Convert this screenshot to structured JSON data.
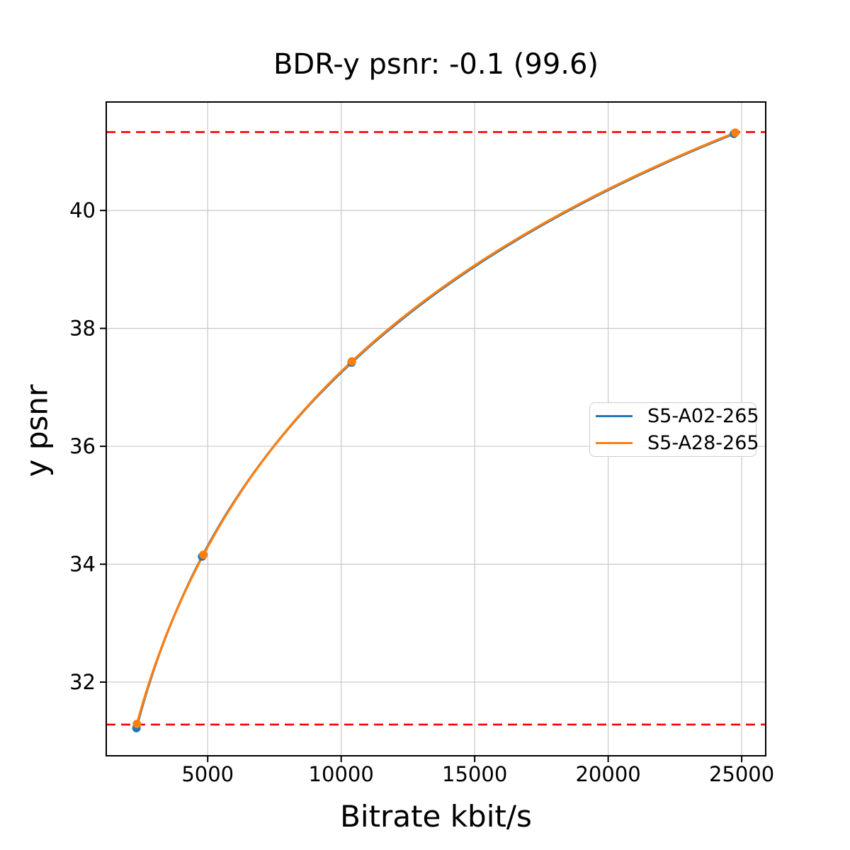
{
  "chart_data": {
    "type": "line",
    "title": "BDR-y psnr: -0.1 (99.6)",
    "xlabel": "Bitrate kbit/s",
    "ylabel": "y psnr",
    "xlim": [
      1200,
      25900
    ],
    "ylim": [
      30.75,
      41.84
    ],
    "xticks": [
      5000,
      10000,
      15000,
      20000,
      25000
    ],
    "yticks": [
      32,
      34,
      36,
      38,
      40
    ],
    "grid": true,
    "x_scale_interpolation": "log",
    "legend_position": "center-right",
    "series": [
      {
        "name": "S5-A02-265",
        "color": "#1f77b4",
        "x": [
          2330,
          4790,
          10390,
          24710
        ],
        "y": [
          31.22,
          34.13,
          37.42,
          41.3
        ]
      },
      {
        "name": "S5-A28-265",
        "color": "#ff7f0e",
        "x": [
          2350,
          4840,
          10400,
          24760
        ],
        "y": [
          31.29,
          34.16,
          37.44,
          41.32
        ]
      }
    ],
    "hlines": [
      {
        "y": 31.28,
        "color": "#ff0000",
        "style": "dashed"
      },
      {
        "y": 41.33,
        "color": "#ff0000",
        "style": "dashed"
      }
    ],
    "marker": "circle"
  },
  "colors": {
    "grid": "#c9c9c9",
    "spine": "#000000",
    "tick": "#000000",
    "background": "#ffffff"
  }
}
